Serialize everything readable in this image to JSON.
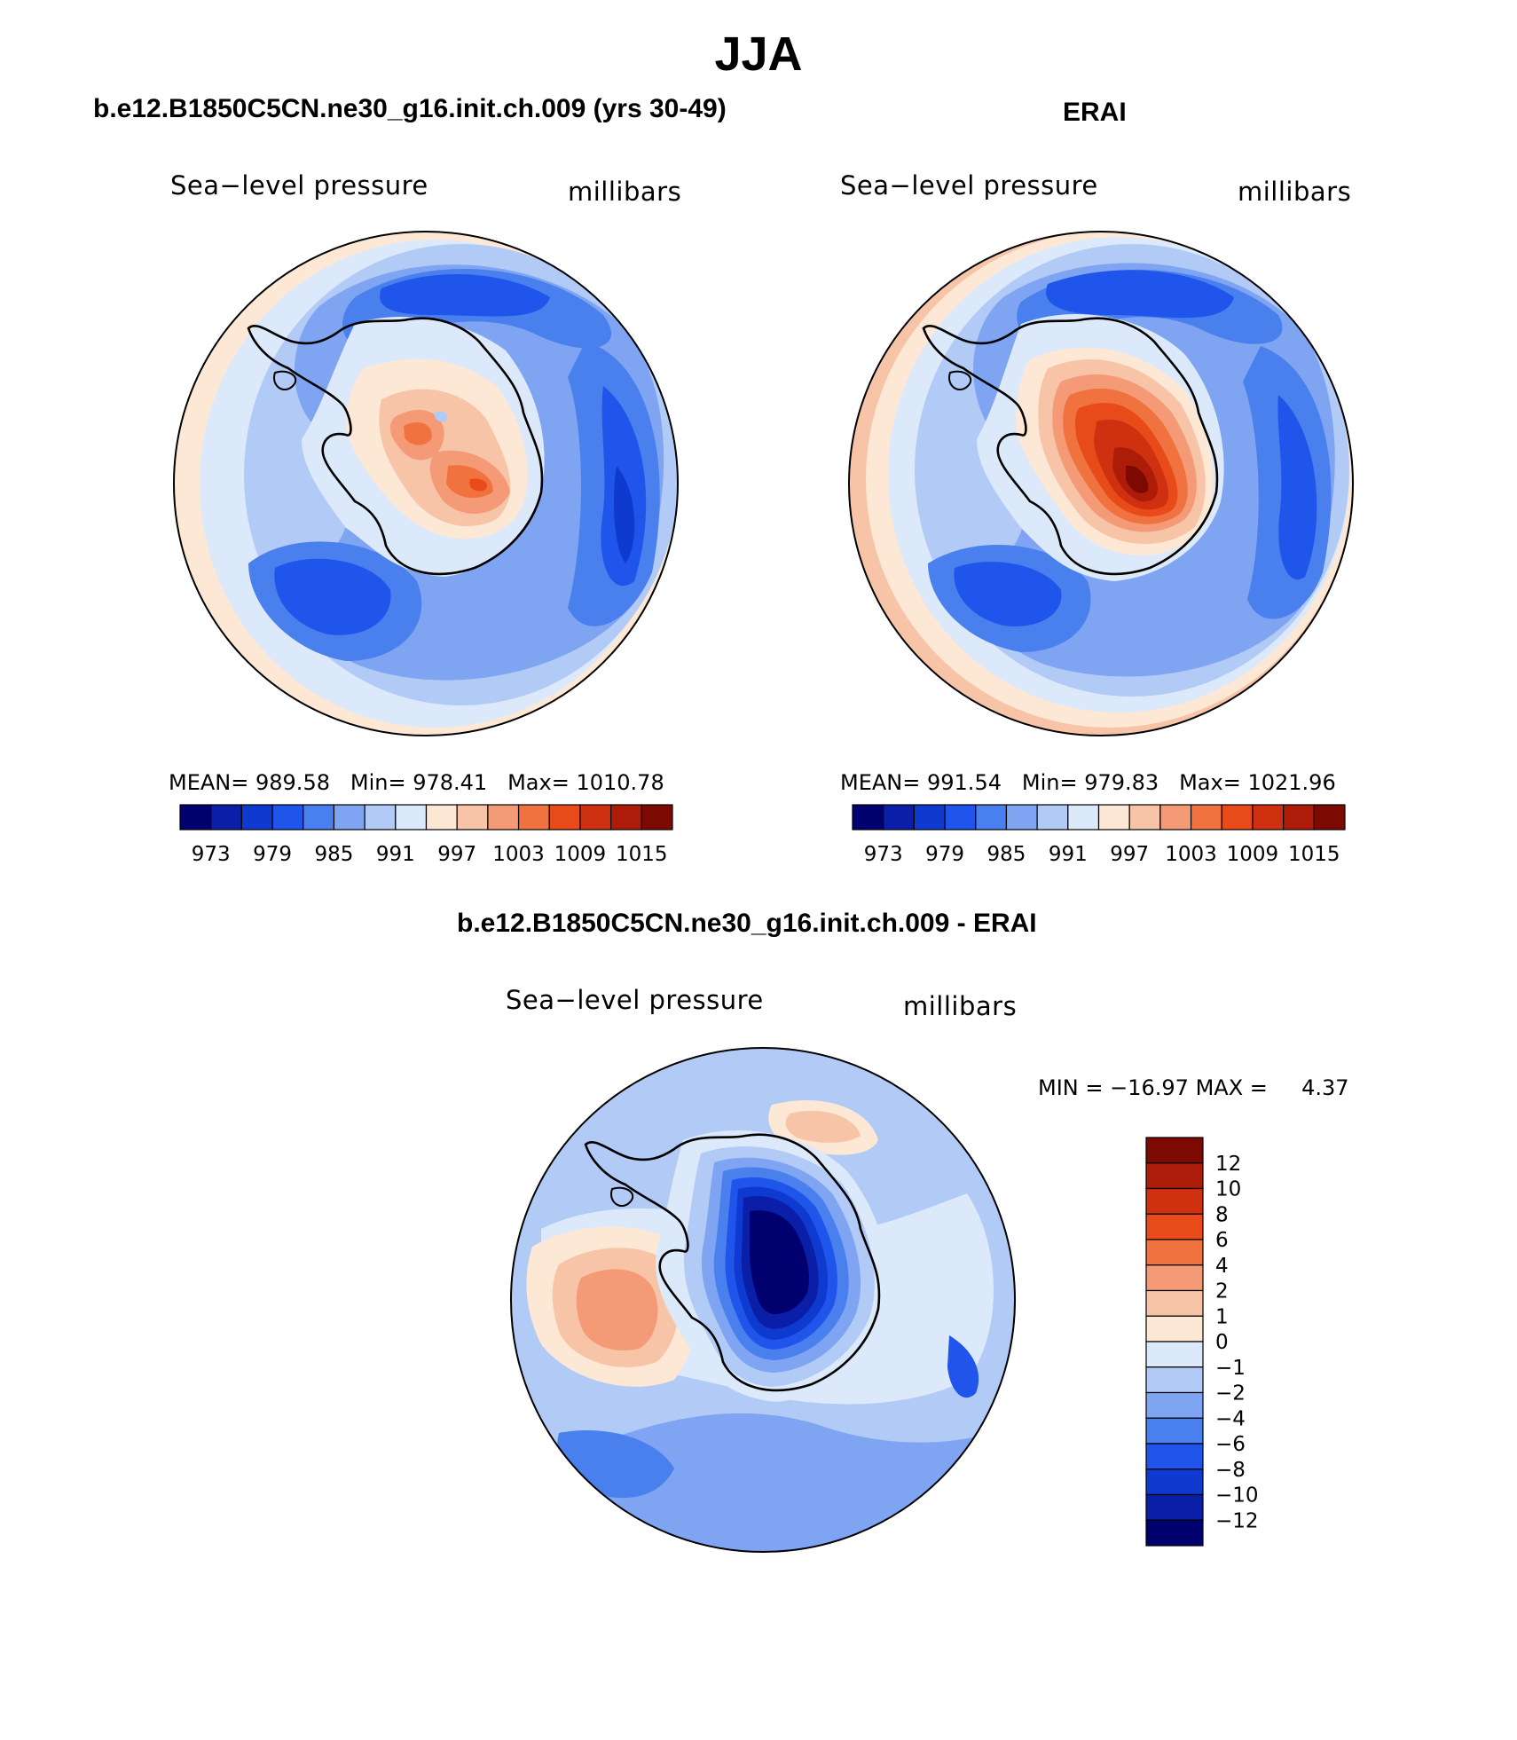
{
  "main_title": "JJA",
  "palette": {
    "levels": [
      "#00006e",
      "#0a1ea8",
      "#0f3ad0",
      "#1f55ea",
      "#4a7fee",
      "#7fa4f2",
      "#b2caf6",
      "#dce9fb",
      "#fde8d6",
      "#f8c4a8",
      "#f49a76",
      "#f0723f",
      "#e84a1a",
      "#cf3010",
      "#ad1c08",
      "#7c0a02"
    ],
    "background": "#ffffff",
    "line": "#000000"
  },
  "chart_data": [
    {
      "type": "heatmap",
      "panel": "model",
      "title": "b.e12.B1850C5CN.ne30_g16.init.ch.009 (yrs 30-49)",
      "left_label": "Sea−level pressure",
      "right_label": "millibars",
      "stats": {
        "mean_label": "MEAN=",
        "mean": "989.58",
        "min_label": "Min=",
        "min": "978.41",
        "max_label": "Max=",
        "max": "1010.78"
      },
      "colorbar_ticks": [
        "973",
        "979",
        "985",
        "991",
        "997",
        "1003",
        "1009",
        "1015"
      ],
      "contour_levels": [
        973,
        976,
        979,
        982,
        985,
        988,
        991,
        994,
        997,
        1000,
        1003,
        1006,
        1009,
        1012,
        1015
      ],
      "projection": "south polar stereographic"
    },
    {
      "type": "heatmap",
      "panel": "obs",
      "title": "ERAI",
      "left_label": "Sea−level pressure",
      "right_label": "millibars",
      "stats": {
        "mean_label": "MEAN=",
        "mean": "991.54",
        "min_label": "Min=",
        "min": "979.83",
        "max_label": "Max=",
        "max": "1021.96"
      },
      "colorbar_ticks": [
        "973",
        "979",
        "985",
        "991",
        "997",
        "1003",
        "1009",
        "1015"
      ],
      "contour_levels": [
        973,
        976,
        979,
        982,
        985,
        988,
        991,
        994,
        997,
        1000,
        1003,
        1006,
        1009,
        1012,
        1015
      ],
      "projection": "south polar stereographic"
    },
    {
      "type": "heatmap",
      "panel": "diff",
      "title": "b.e12.B1850C5CN.ne30_g16.init.ch.009 - ERAI",
      "left_label": "Sea−level pressure",
      "right_label": "millibars",
      "stats": {
        "min_label": "MIN =",
        "min": "−16.97",
        "max_label": "MAX =",
        "max": "4.37"
      },
      "colorbar_ticks": [
        "12",
        "10",
        "8",
        "6",
        "4",
        "2",
        "1",
        "0",
        "−1",
        "−2",
        "−4",
        "−6",
        "−8",
        "−10",
        "−12"
      ],
      "contour_levels": [
        -12,
        -10,
        -8,
        -6,
        -4,
        -2,
        -1,
        0,
        1,
        2,
        4,
        6,
        8,
        10,
        12
      ],
      "projection": "south polar stereographic"
    }
  ]
}
